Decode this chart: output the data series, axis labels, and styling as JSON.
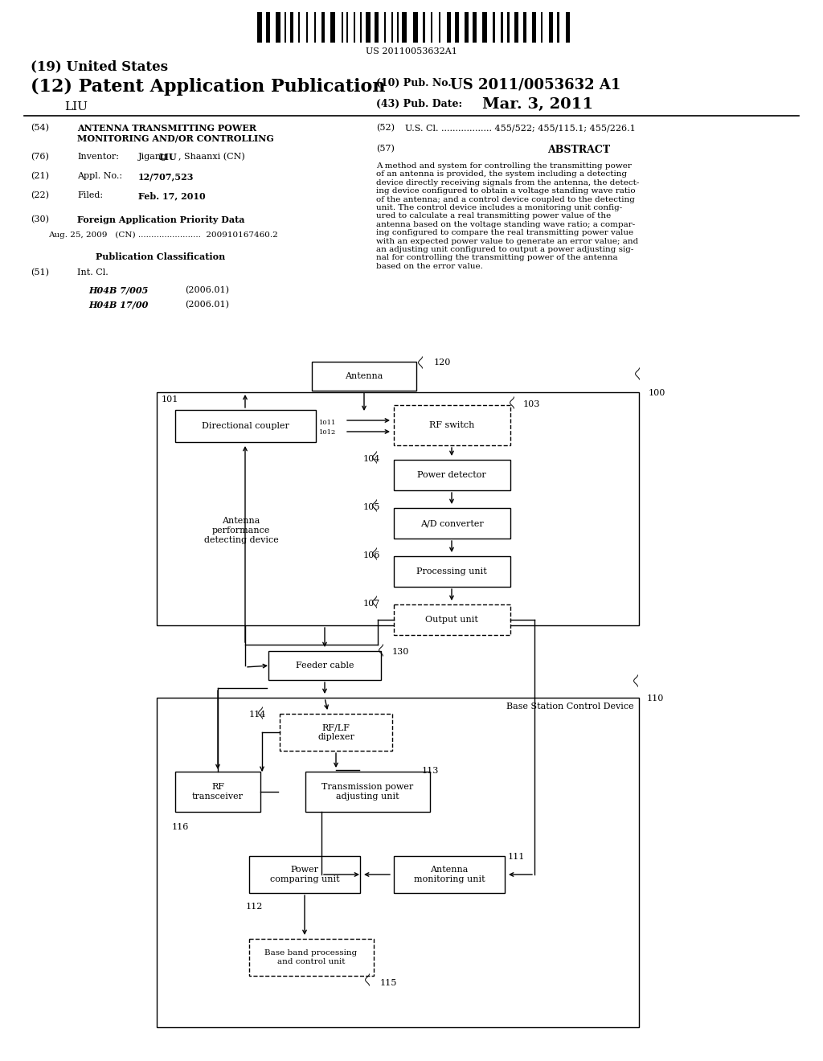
{
  "bg_color": "#ffffff",
  "barcode_text": "US 20110053632A1",
  "figsize": [
    10.24,
    13.2
  ],
  "dpi": 100,
  "header": {
    "line19": "(19) United States",
    "line12_left": "(12) Patent Application Publication",
    "line12_right_label": "(10) Pub. No.:",
    "line12_right_value": "US 2011/0053632 A1",
    "author": "LIU",
    "line43_label": "(43) Pub. Date:",
    "line43_value": "Mar. 3, 2011"
  },
  "meta": {
    "line54_label": "(54)",
    "line54_text": "ANTENNA TRANSMITTING POWER\nMONITORING AND/OR CONTROLLING",
    "line52_label": "(52)",
    "line52_text": "U.S. Cl. .................. 455/522; 455/115.1; 455/226.1",
    "line76_label": "(76)",
    "line76_key": "Inventor:",
    "line76_val1": "Jigang ",
    "line76_val2": "LIU",
    "line76_val3": ", Shaanxi (CN)",
    "line57_label": "(57)",
    "line57_title": "ABSTRACT",
    "line21_label": "(21)",
    "line21_key": "Appl. No.:",
    "line21_val": "12/707,523",
    "line22_label": "(22)",
    "line22_key": "Filed:",
    "line22_val": "Feb. 17, 2010",
    "line30_label": "(30)",
    "line30_title": "Foreign Application Priority Data",
    "line30_data": "Aug. 25, 2009   (CN) ........................  200910167460.2",
    "pub_class_title": "Publication Classification",
    "line51_label": "(51)",
    "line51_title": "Int. Cl.",
    "line51_class1": "H04B 7/005",
    "line51_class1_year": "(2006.01)",
    "line51_class2": "H04B 17/00",
    "line51_class2_year": "(2006.01)",
    "abstract": "A method and system for controlling the transmitting power\nof an antenna is provided, the system including a detecting\ndevice directly receiving signals from the antenna, the detect-\ning device configured to obtain a voltage standing wave ratio\nof the antenna; and a control device coupled to the detecting\nunit. The control device includes a monitoring unit config-\nured to calculate a real transmitting power value of the\nantenna based on the voltage standing wave ratio; a compar-\ning configured to compare the real transmitting power value\nwith an expected power value to generate an error value; and\nan adjusting unit configured to output a power adjusting sig-\nnal for controlling the transmitting power of the antenna\nbased on the error value."
  }
}
